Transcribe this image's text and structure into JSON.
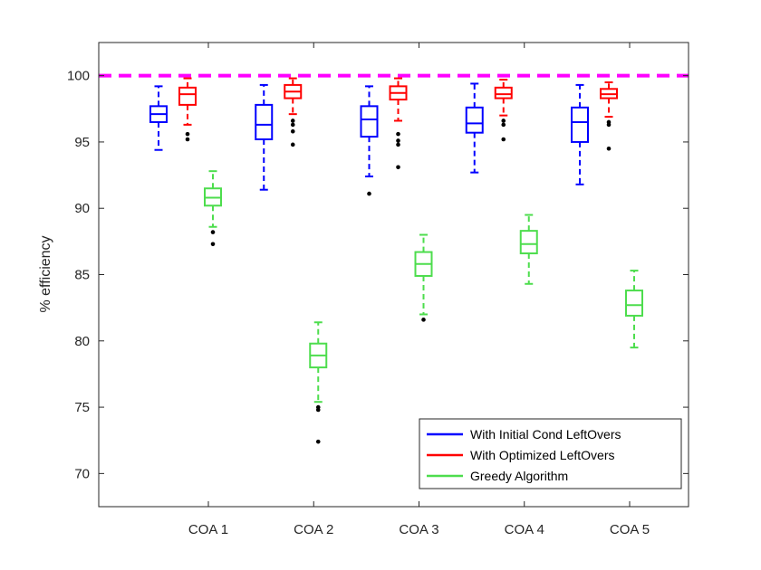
{
  "chart_data": {
    "type": "box",
    "title": "",
    "xlabel": "",
    "ylabel": "% efficiency",
    "ylim": [
      67.5,
      102.5
    ],
    "yticks": [
      70,
      75,
      80,
      85,
      90,
      95,
      100
    ],
    "grid": false,
    "legend_position": "bottom-right",
    "categories": [
      "COA 1",
      "COA 2",
      "COA 3",
      "COA 4",
      "COA 5"
    ],
    "reference_line": {
      "y": 100,
      "color": "#ff00ff",
      "style": "dashed"
    },
    "series": [
      {
        "name": "With Initial Cond LeftOvers",
        "color": "#0000ff",
        "boxes": [
          {
            "whisker_low": 94.4,
            "q1": 96.5,
            "median": 97.1,
            "q3": 97.7,
            "whisker_high": 99.2,
            "outliers": []
          },
          {
            "whisker_low": 91.4,
            "q1": 95.2,
            "median": 96.3,
            "q3": 97.8,
            "whisker_high": 99.3,
            "outliers": []
          },
          {
            "whisker_low": 92.4,
            "q1": 95.4,
            "median": 96.7,
            "q3": 97.7,
            "whisker_high": 99.2,
            "outliers": [
              91.1
            ]
          },
          {
            "whisker_low": 92.7,
            "q1": 95.7,
            "median": 96.4,
            "q3": 97.6,
            "whisker_high": 99.4,
            "outliers": []
          },
          {
            "whisker_low": 91.8,
            "q1": 95.0,
            "median": 96.5,
            "q3": 97.6,
            "whisker_high": 99.3,
            "outliers": []
          }
        ]
      },
      {
        "name": "With Optimized LeftOvers",
        "color": "#ff0000",
        "boxes": [
          {
            "whisker_low": 96.3,
            "q1": 97.8,
            "median": 98.6,
            "q3": 99.1,
            "whisker_high": 99.8,
            "outliers": [
              95.6,
              95.2
            ]
          },
          {
            "whisker_low": 97.1,
            "q1": 98.3,
            "median": 98.8,
            "q3": 99.3,
            "whisker_high": 99.8,
            "outliers": [
              96.6,
              96.3,
              95.8,
              94.8
            ]
          },
          {
            "whisker_low": 96.6,
            "q1": 98.2,
            "median": 98.7,
            "q3": 99.2,
            "whisker_high": 99.8,
            "outliers": [
              95.6,
              95.1,
              94.8,
              93.1
            ]
          },
          {
            "whisker_low": 97.0,
            "q1": 98.3,
            "median": 98.6,
            "q3": 99.1,
            "whisker_high": 99.7,
            "outliers": [
              96.6,
              96.3,
              95.2
            ]
          },
          {
            "whisker_low": 96.9,
            "q1": 98.3,
            "median": 98.6,
            "q3": 99.0,
            "whisker_high": 99.5,
            "outliers": [
              96.5,
              96.3,
              94.5
            ]
          }
        ]
      },
      {
        "name": "Greedy Algorithm",
        "color": "#4ddd4d",
        "boxes": [
          {
            "whisker_low": 88.6,
            "q1": 90.2,
            "median": 90.8,
            "q3": 91.5,
            "whisker_high": 92.8,
            "outliers": [
              88.2,
              87.3
            ]
          },
          {
            "whisker_low": 75.4,
            "q1": 78.0,
            "median": 78.9,
            "q3": 79.8,
            "whisker_high": 81.4,
            "outliers": [
              75.0,
              74.8,
              72.4
            ]
          },
          {
            "whisker_low": 82.0,
            "q1": 84.9,
            "median": 85.8,
            "q3": 86.7,
            "whisker_high": 88.0,
            "outliers": [
              81.6
            ]
          },
          {
            "whisker_low": 84.3,
            "q1": 86.6,
            "median": 87.3,
            "q3": 88.3,
            "whisker_high": 89.5,
            "outliers": []
          },
          {
            "whisker_low": 79.5,
            "q1": 81.9,
            "median": 82.7,
            "q3": 83.8,
            "whisker_high": 85.3,
            "outliers": []
          }
        ]
      }
    ]
  }
}
